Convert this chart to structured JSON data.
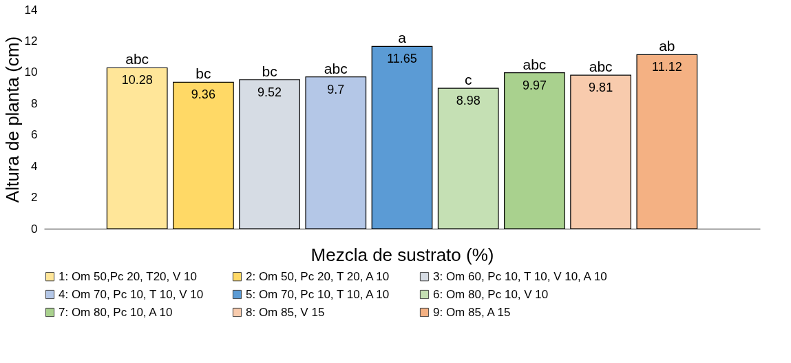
{
  "chart_data": {
    "type": "bar",
    "xlabel": "Mezcla de sustrato (%)",
    "ylabel": "Altura de planta (cm)",
    "categories": [
      null
    ],
    "series": [
      {
        "name": "1: Om 50,Pc 20, T20, V 10",
        "color": "#ffe699",
        "values": [
          10.28
        ]
      },
      {
        "name": "2: Om 50, Pc 20, T 20, A 10",
        "color": "#ffd966",
        "values": [
          9.36
        ]
      },
      {
        "name": "3: Om 60, Pc 10, T 10, V 10, A 10",
        "color": "#d6dce4",
        "values": [
          9.52
        ]
      },
      {
        "name": "4: Om 70, Pc 10, T 10, V 10",
        "color": "#b4c7e7",
        "values": [
          9.7
        ]
      },
      {
        "name": "5: Om 70, Pc 10, T 10, A 10",
        "color": "#5b9bd5",
        "values": [
          11.65
        ]
      },
      {
        "name": "6: Om 80, Pc 10, V 10",
        "color": "#c5e0b4",
        "values": [
          8.98
        ]
      },
      {
        "name": "7: Om 80, Pc 10, A 10",
        "color": "#a9d18e",
        "values": [
          9.97
        ]
      },
      {
        "name": "8: Om 85, V 15",
        "color": "#f8cbad",
        "values": [
          9.81
        ]
      },
      {
        "name": "9: Om 85, A 15",
        "color": "#f4b183",
        "values": [
          11.12
        ]
      }
    ],
    "ylim": [
      0,
      14
    ],
    "yticks": [
      0,
      2,
      4,
      6,
      8,
      10,
      12,
      14
    ],
    "data_labels": true,
    "annotations": [
      {
        "text": "abc",
        "y": 10.28
      },
      {
        "text": "bc",
        "y": 9.36
      },
      {
        "text": "bc",
        "y": 9.52
      },
      {
        "text": "abc",
        "y": 9.7
      },
      {
        "text": "a",
        "y": 11.65
      },
      {
        "text": "c",
        "y": 8.98
      },
      {
        "text": "abc",
        "y": 9.97
      },
      {
        "text": "abc",
        "y": 9.81
      },
      {
        "text": "ab",
        "y": 11.12
      }
    ],
    "legend": "bottom",
    "tick_labels": "y"
  }
}
